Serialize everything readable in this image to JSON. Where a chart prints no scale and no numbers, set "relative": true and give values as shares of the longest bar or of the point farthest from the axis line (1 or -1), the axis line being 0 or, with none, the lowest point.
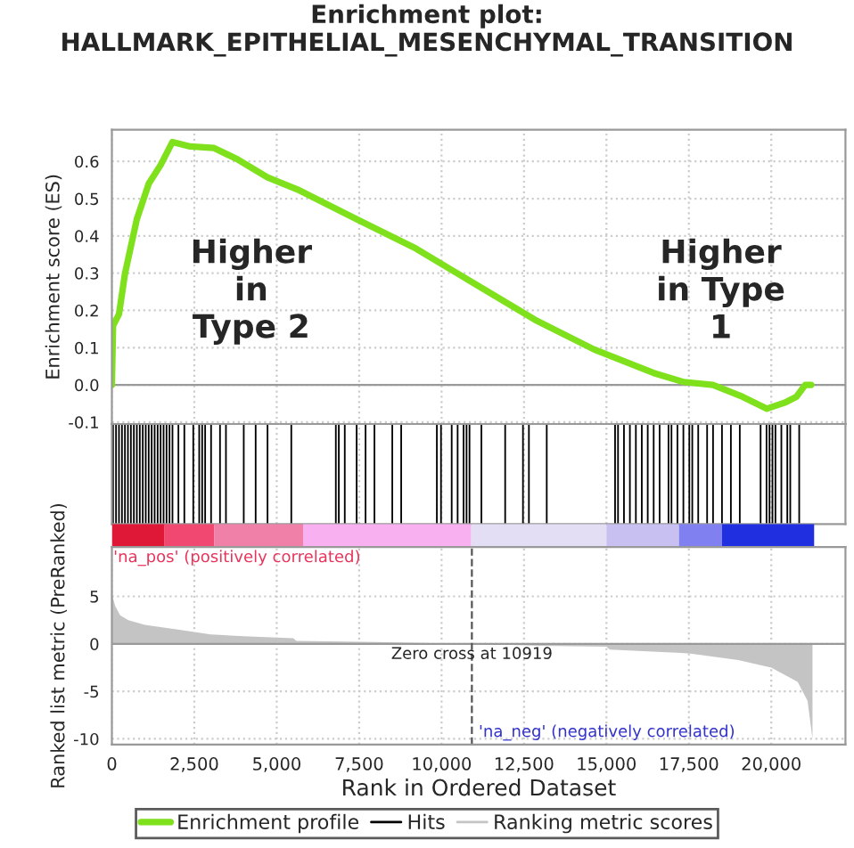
{
  "chart_data": [
    {
      "type": "line",
      "title": "Enrichment plot:\nHALLMARK_EPITHELIAL_MESENCHYMAL_TRANSITION",
      "ylabel": "Enrichment score (ES)",
      "xlim": [
        0,
        22250
      ],
      "ylim": [
        -0.105,
        0.685
      ],
      "xticks": [
        0,
        2500,
        5000,
        7500,
        10000,
        12500,
        15000,
        17500,
        20000
      ],
      "yticks": [
        -0.1,
        {
          "value": 0,
          "label": "0.0"
        },
        0.1,
        0.2,
        0.3,
        0.4,
        0.5,
        0.6
      ],
      "tick_labels": "y",
      "grid": true,
      "legend": "bottom",
      "marker": "none",
      "line_style": "solid",
      "annotations": [
        "Higher\nin\nType 2",
        "Higher\nin Type\n1"
      ],
      "series": [
        {
          "name": "Enrichment profile",
          "color": "#7fe01c",
          "x": [
            0,
            36,
            216,
            400,
            757,
            1117,
            1477,
            1838,
            2378,
            3100,
            3820,
            4720,
            5620,
            7420,
            9225,
            11030,
            12830,
            14630,
            16430,
            17330,
            18230,
            19130,
            19860,
            20400,
            20760,
            21030,
            21210
          ],
          "values": [
            0.0,
            0.159,
            0.19,
            0.3,
            0.445,
            0.54,
            0.59,
            0.652,
            0.64,
            0.636,
            0.605,
            0.557,
            0.525,
            0.445,
            0.366,
            0.27,
            0.175,
            0.095,
            0.032,
            0.008,
            0.0,
            -0.032,
            -0.064,
            -0.048,
            -0.032,
            0.0,
            0.0
          ]
        }
      ]
    },
    {
      "type": "bar",
      "relative": true,
      "xlim": [
        0,
        22250
      ],
      "xticks": [
        0,
        2500,
        5000,
        7500,
        10000,
        12500,
        15000,
        17500,
        20000
      ],
      "tick_labels": false,
      "grid": "x",
      "legend": "bottom",
      "series": [
        {
          "name": "Hits",
          "color": "#000000",
          "x": [
            36,
            126,
            216,
            306,
            396,
            487,
            577,
            667,
            757,
            847,
            937,
            1027,
            1117,
            1207,
            1297,
            1388,
            1478,
            1568,
            1658,
            1748,
            1838,
            2018,
            2198,
            2469,
            2649,
            2739,
            2829,
            3009,
            3280,
            3460,
            4000,
            4361,
            4721,
            5442,
            6793,
            6883,
            7064,
            7424,
            7694,
            7964,
            8505,
            8775,
            9857,
            9983,
            10307,
            10487,
            10667,
            10757,
            10847,
            11208,
            11929,
            12469,
            12649,
            13190,
            15262,
            15352,
            15532,
            15712,
            15893,
            16073,
            16253,
            16433,
            16613,
            16883,
            16973,
            17154,
            17334,
            17514,
            17604,
            17784,
            18054,
            18234,
            18505,
            18775,
            19045,
            19676,
            19856,
            19946,
            20036,
            20126,
            20306,
            20486,
            20576,
            20847
          ],
          "values": [
            1,
            1,
            1,
            1,
            1,
            1,
            1,
            1,
            1,
            1,
            1,
            1,
            1,
            1,
            1,
            1,
            1,
            1,
            1,
            1,
            1,
            1,
            1,
            1,
            1,
            1,
            1,
            1,
            1,
            1,
            1,
            1,
            1,
            1,
            1,
            1,
            1,
            1,
            1,
            1,
            1,
            1,
            1,
            1,
            1,
            1,
            1,
            1,
            1,
            1,
            1,
            1,
            1,
            1,
            1,
            1,
            1,
            1,
            1,
            1,
            1,
            1,
            1,
            1,
            1,
            1,
            1,
            1,
            1,
            1,
            1,
            1,
            1,
            1,
            1,
            1,
            1,
            1,
            1,
            1,
            1,
            1,
            1,
            1
          ]
        }
      ]
    },
    {
      "type": "area",
      "xlabel": "Rank in Ordered Dataset",
      "ylabel": "Ranked list metric (PreRanked)",
      "xlim": [
        0,
        22250
      ],
      "ylim": [
        -10.6,
        10.2
      ],
      "xticks": [
        0,
        {
          "value": 2500,
          "label": "2,500"
        },
        {
          "value": 5000,
          "label": "5,000"
        },
        {
          "value": 7500,
          "label": "7,500"
        },
        {
          "value": 10000,
          "label": "10,000"
        },
        {
          "value": 12500,
          "label": "12,500"
        },
        {
          "value": 15000,
          "label": "15,000"
        },
        {
          "value": 17500,
          "label": "17,500"
        },
        {
          "value": 20000,
          "label": "20,000"
        }
      ],
      "yticks": [
        -10,
        -5,
        0,
        5
      ],
      "grid": true,
      "legend": "bottom",
      "annotations": [
        "'na_pos' (positively correlated)",
        "'na_neg' (negatively correlated)"
      ],
      "ref_lines": [
        {
          "axis": "x",
          "value": 10919,
          "label": "Zero cross at 10919",
          "color": "#555555",
          "line_style": "dashed"
        }
      ],
      "series": [
        {
          "name": "Ranking metric scores",
          "color": "#c4c4c4",
          "x": [
            0,
            20,
            100,
            250,
            500,
            1000,
            2000,
            3000,
            4000,
            5500,
            5600,
            8000,
            10919,
            13000,
            15000,
            15100,
            17500,
            19000,
            20000,
            20800,
            21100,
            21250
          ],
          "values": [
            7,
            5,
            4,
            3,
            2.5,
            2,
            1.5,
            1.0,
            0.8,
            0.6,
            0.3,
            0.2,
            0,
            -0.2,
            -0.3,
            -0.6,
            -1.0,
            -1.7,
            -2.5,
            -4,
            -6,
            -10
          ]
        }
      ]
    }
  ]
}
